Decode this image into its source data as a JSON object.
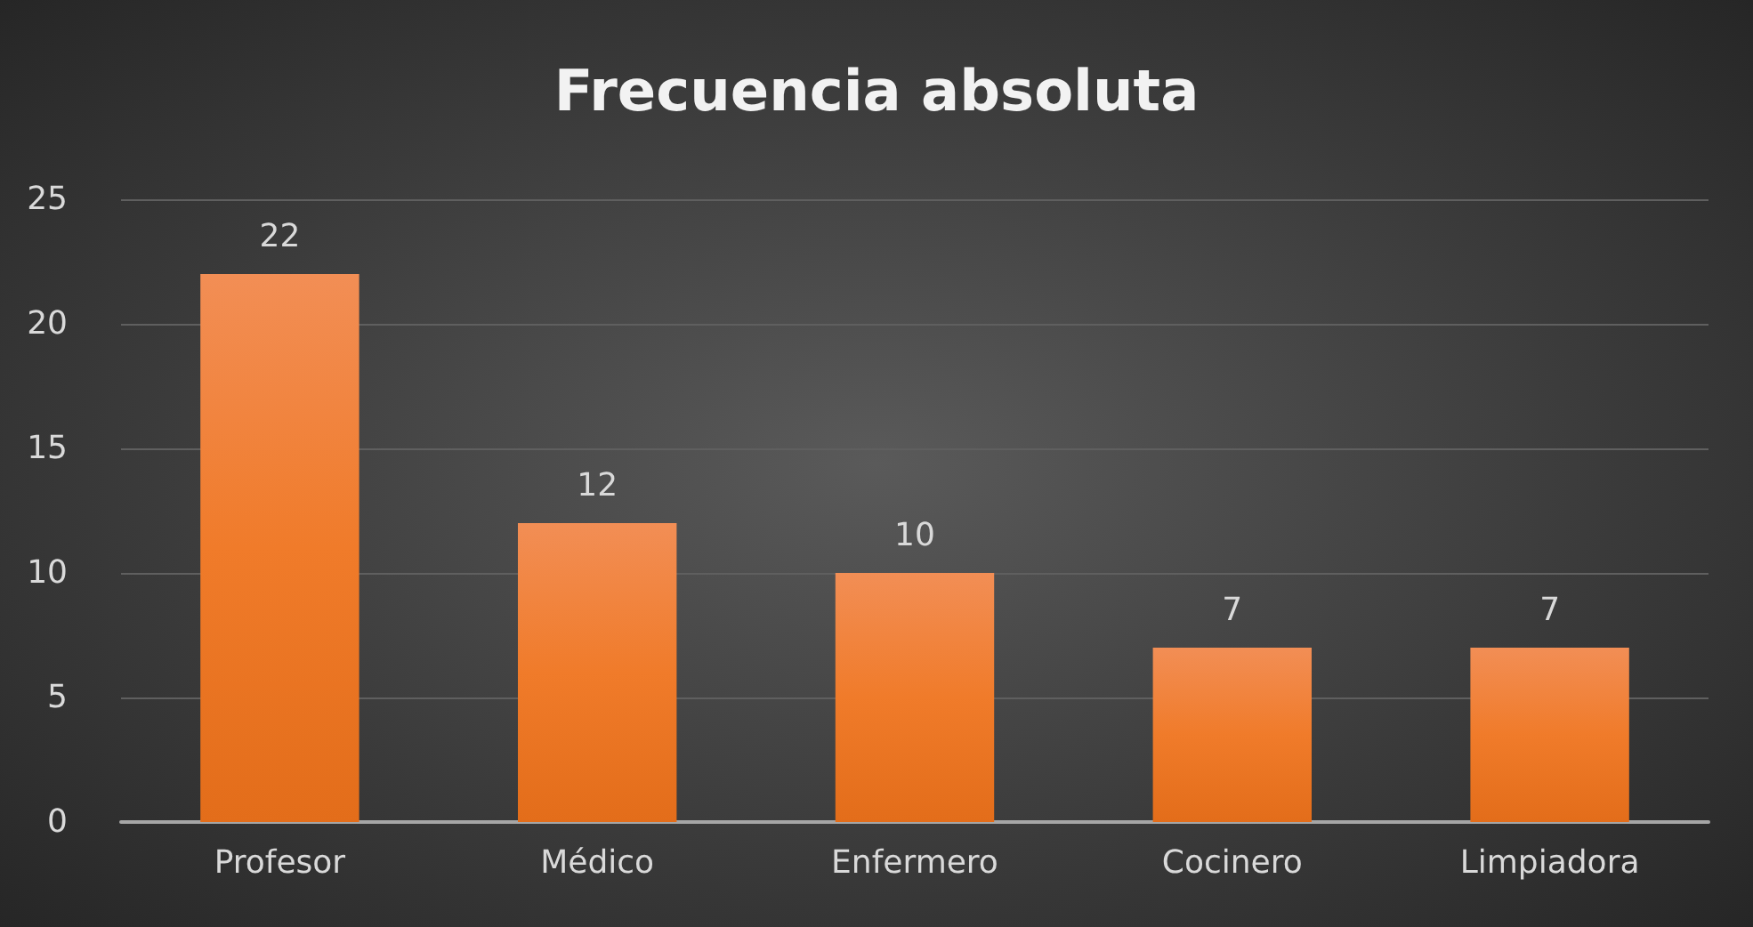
{
  "chart_data": {
    "type": "bar",
    "title": "Frecuencia absoluta",
    "categories": [
      "Profesor",
      "Médico",
      "Enfermero",
      "Cocinero",
      "Limpiadora"
    ],
    "values": [
      22,
      12,
      10,
      7,
      7
    ],
    "color": "#f07b2a",
    "ylim": [
      0,
      25
    ],
    "yticks": [
      0,
      5,
      10,
      15,
      20,
      25
    ],
    "grid": "y",
    "data_labels": true
  }
}
